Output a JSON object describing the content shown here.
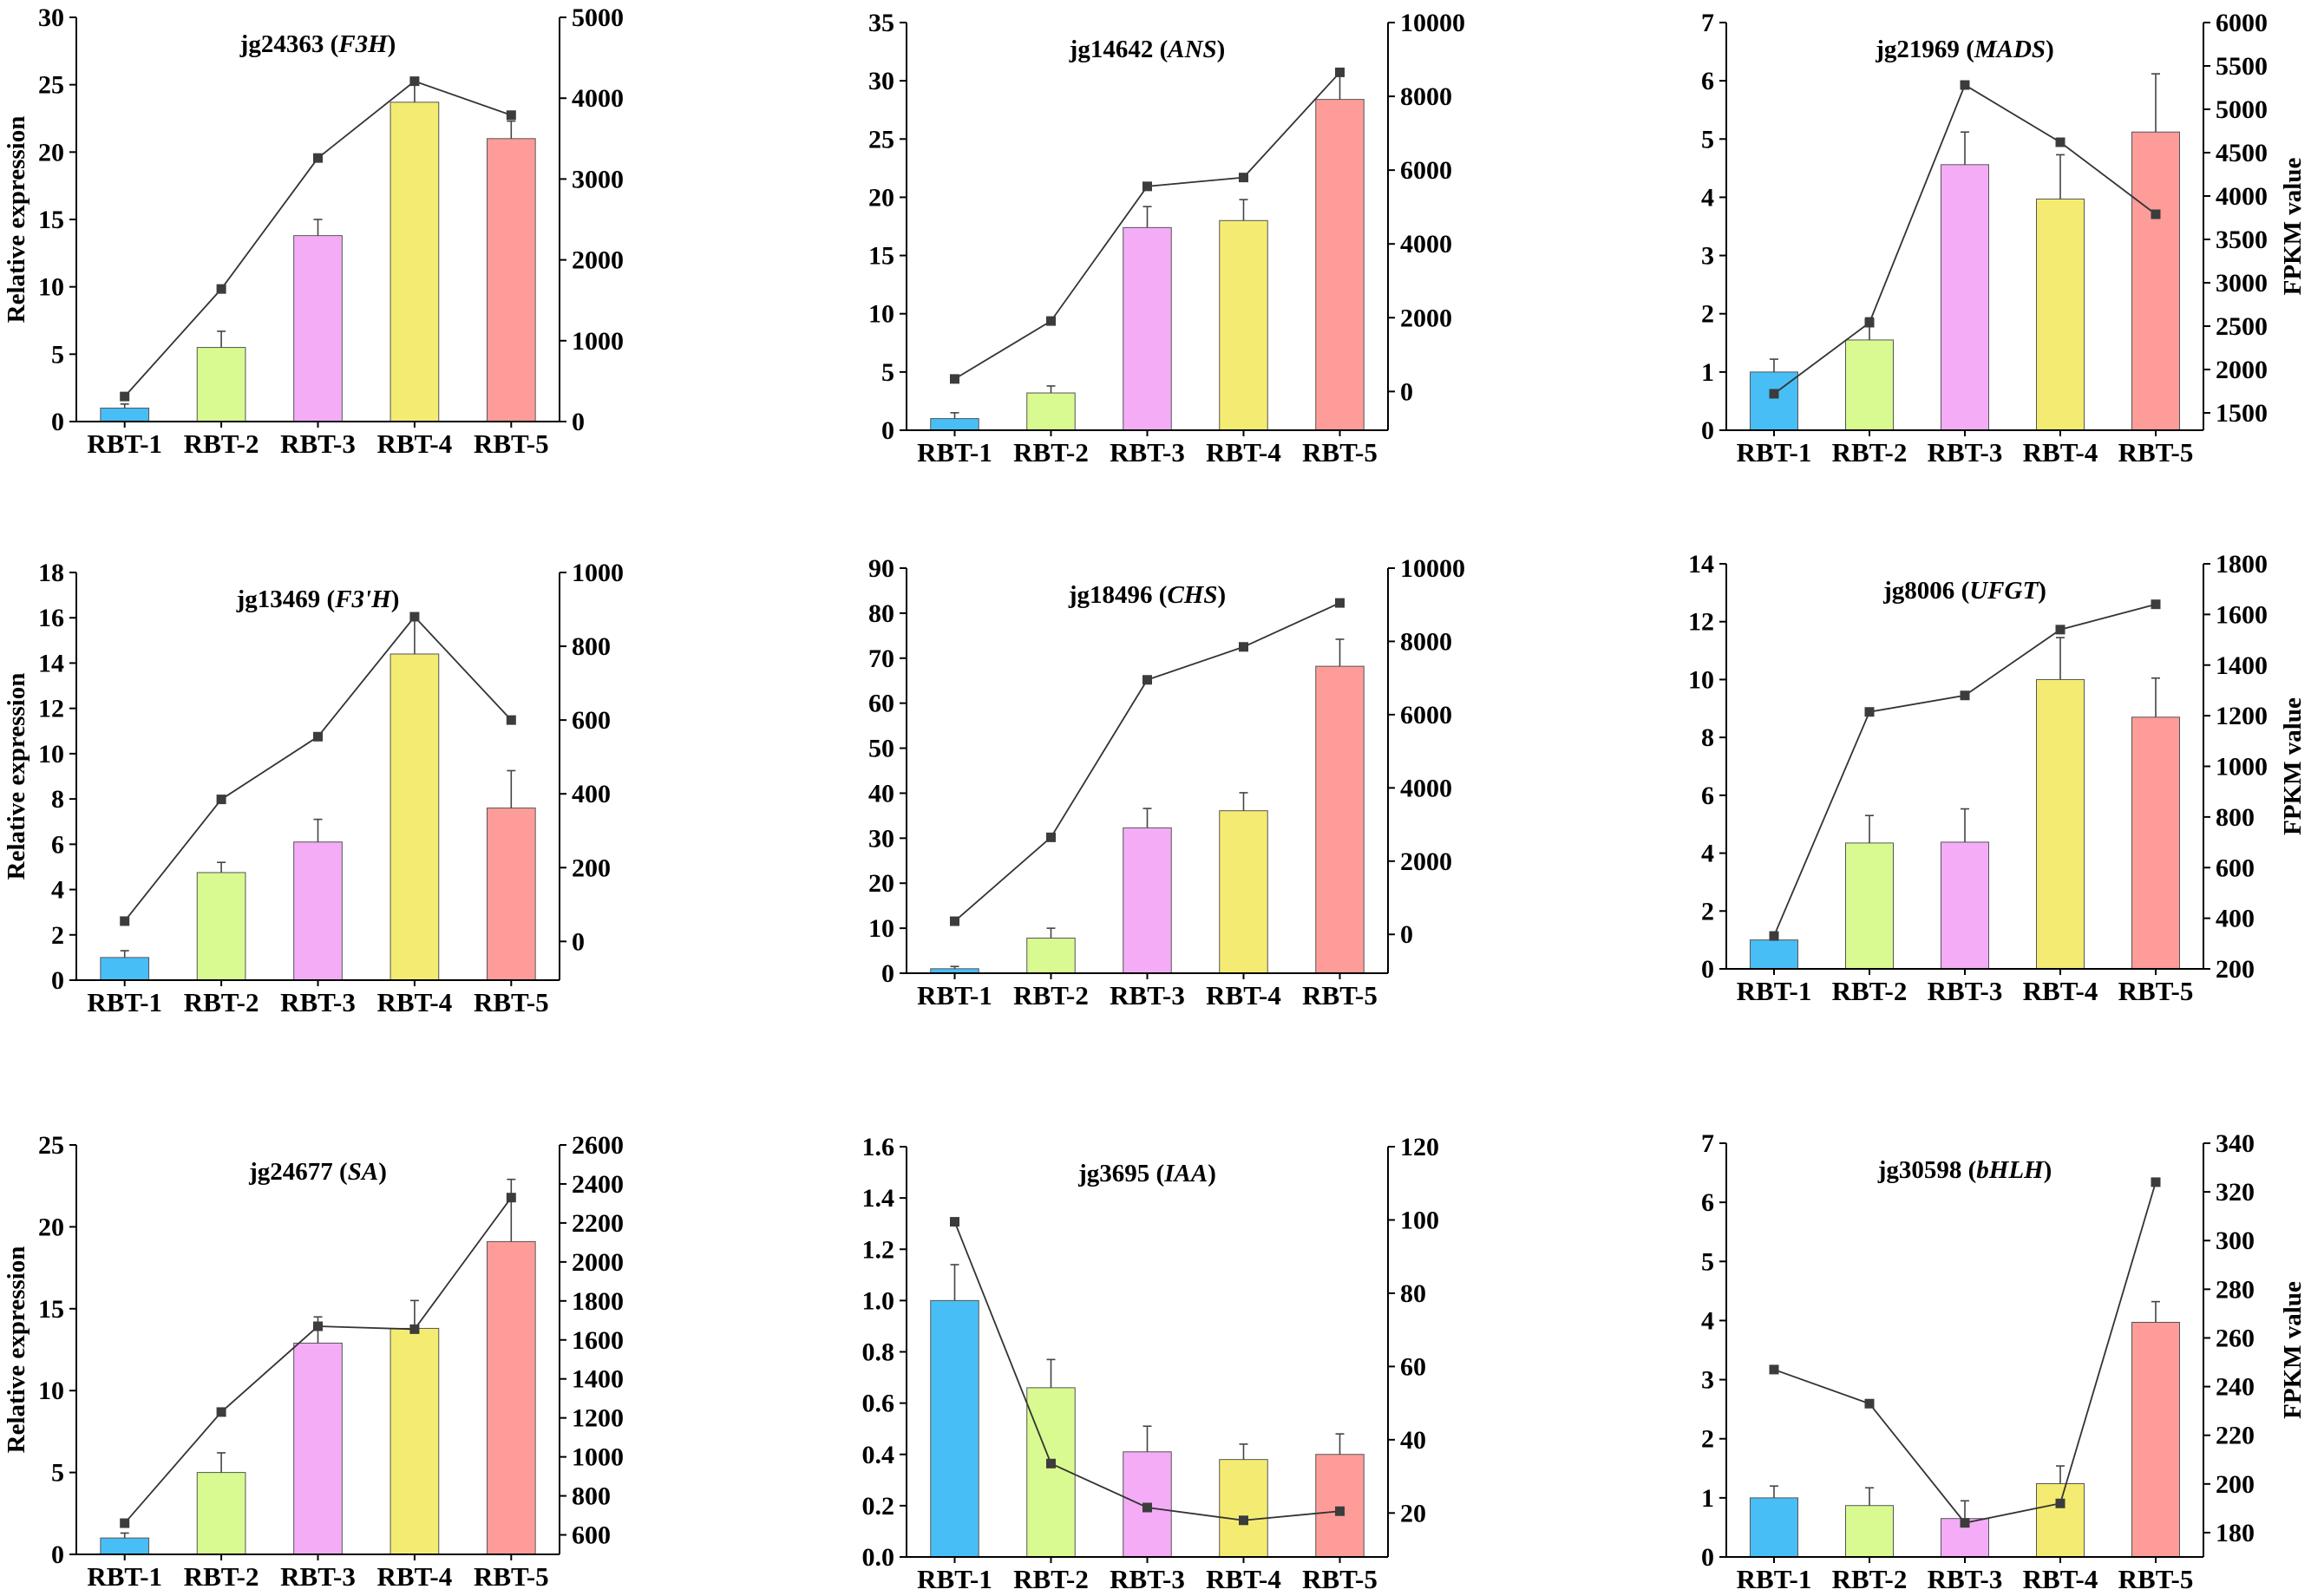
{
  "chart_data": [
    {
      "type": "bar+line",
      "title_id": "jg24363",
      "title_gene": "F3H",
      "ylabel": "Relative expression",
      "y2label": "",
      "categories": [
        "RBT-1",
        "RBT-2",
        "RBT-3",
        "RBT-4",
        "RBT-5"
      ],
      "bar_colors": [
        "#48BEF6",
        "#D8FA91",
        "#F4ACF7",
        "#F4EC72",
        "#FD9C99"
      ],
      "bar_values": [
        1.0,
        5.5,
        13.8,
        23.7,
        21.0
      ],
      "bar_errors": [
        0.3,
        1.2,
        1.2,
        1.5,
        1.3
      ],
      "line_values": [
        310,
        1640,
        3260,
        4210,
        3790
      ],
      "ylim": [
        0,
        30
      ],
      "yticks": [
        "0",
        "5",
        "10",
        "15",
        "20",
        "25",
        "30"
      ],
      "y2lim": [
        0,
        5000
      ],
      "y2ticks": [
        "0",
        "1000",
        "2000",
        "3000",
        "4000",
        "5000"
      ]
    },
    {
      "type": "bar+line",
      "title_id": "jg14642",
      "title_gene": "ANS",
      "ylabel": "",
      "y2label": "",
      "categories": [
        "RBT-1",
        "RBT-2",
        "RBT-3",
        "RBT-4",
        "RBT-5"
      ],
      "bar_colors": [
        "#48BEF6",
        "#D8FA91",
        "#F4ACF7",
        "#F4EC72",
        "#FD9C99"
      ],
      "bar_values": [
        1.0,
        3.2,
        17.4,
        18.0,
        28.4
      ],
      "bar_errors": [
        0.5,
        0.6,
        1.8,
        1.8,
        2.2
      ],
      "line_values": [
        340,
        1910,
        5560,
        5800,
        8650
      ],
      "ylim": [
        0,
        35
      ],
      "yticks": [
        "0",
        "5",
        "10",
        "15",
        "20",
        "25",
        "30",
        "35"
      ],
      "y2lim": [
        -1050,
        10000
      ],
      "y2ticks": [
        "0",
        "2000",
        "4000",
        "6000",
        "8000",
        "10000"
      ]
    },
    {
      "type": "bar+line",
      "title_id": "jg21969",
      "title_gene": "MADS",
      "ylabel": "",
      "y2label": "FPKM value",
      "categories": [
        "RBT-1",
        "RBT-2",
        "RBT-3",
        "RBT-4",
        "RBT-5"
      ],
      "bar_colors": [
        "#48BEF6",
        "#D8FA91",
        "#F4ACF7",
        "#F4EC72",
        "#FD9C99"
      ],
      "bar_values": [
        1.0,
        1.55,
        4.56,
        3.97,
        5.12
      ],
      "bar_errors": [
        0.22,
        0.38,
        0.56,
        0.76,
        1.0
      ],
      "line_values": [
        1720,
        2540,
        5280,
        4620,
        3790
      ],
      "ylim": [
        0,
        7
      ],
      "yticks": [
        "0",
        "1",
        "2",
        "3",
        "4",
        "5",
        "6",
        "7"
      ],
      "y2lim": [
        1300,
        6000
      ],
      "y2ticks": [
        "1500",
        "2000",
        "2500",
        "3000",
        "3500",
        "4000",
        "4500",
        "5000",
        "5500",
        "6000"
      ]
    },
    {
      "type": "bar+line",
      "title_id": "jg13469",
      "title_gene": "F3'H",
      "ylabel": "Relative expression",
      "y2label": "",
      "categories": [
        "RBT-1",
        "RBT-2",
        "RBT-3",
        "RBT-4",
        "RBT-5"
      ],
      "bar_colors": [
        "#48BEF6",
        "#D8FA91",
        "#F4ACF7",
        "#F4EC72",
        "#FD9C99"
      ],
      "bar_values": [
        1.0,
        4.75,
        6.1,
        14.4,
        7.6
      ],
      "bar_errors": [
        0.3,
        0.45,
        1.0,
        1.6,
        1.65
      ],
      "line_values": [
        55,
        385,
        555,
        880,
        600
      ],
      "ylim": [
        0,
        18
      ],
      "yticks": [
        "0",
        "2",
        "4",
        "6",
        "8",
        "10",
        "12",
        "14",
        "16",
        "18"
      ],
      "y2lim": [
        -105,
        1000
      ],
      "y2ticks": [
        "0",
        "200",
        "400",
        "600",
        "800",
        "1000"
      ]
    },
    {
      "type": "bar+line",
      "title_id": "jg18496",
      "title_gene": "CHS",
      "ylabel": "",
      "y2label": "",
      "categories": [
        "RBT-1",
        "RBT-2",
        "RBT-3",
        "RBT-4",
        "RBT-5"
      ],
      "bar_colors": [
        "#48BEF6",
        "#D8FA91",
        "#F4ACF7",
        "#F4EC72",
        "#FD9C99"
      ],
      "bar_values": [
        1.0,
        7.8,
        32.3,
        36.1,
        68.2
      ],
      "bar_errors": [
        0.5,
        2.2,
        4.3,
        4.0,
        6.0
      ],
      "line_values": [
        360,
        2650,
        6950,
        7850,
        9050
      ],
      "ylim": [
        0,
        90
      ],
      "yticks": [
        "0",
        "10",
        "20",
        "30",
        "40",
        "50",
        "60",
        "70",
        "80",
        "90"
      ],
      "y2lim": [
        -1060,
        10000
      ],
      "y2ticks": [
        "0",
        "2000",
        "4000",
        "6000",
        "8000",
        "10000"
      ]
    },
    {
      "type": "bar+line",
      "title_id": "jg8006",
      "title_gene": "UFGT",
      "ylabel": "",
      "y2label": "FPKM value",
      "categories": [
        "RBT-1",
        "RBT-2",
        "RBT-3",
        "RBT-4",
        "RBT-5"
      ],
      "bar_colors": [
        "#48BEF6",
        "#D8FA91",
        "#F4ACF7",
        "#F4EC72",
        "#FD9C99"
      ],
      "bar_values": [
        1.0,
        4.35,
        4.38,
        10.0,
        8.7
      ],
      "bar_errors": [
        0.1,
        0.95,
        1.15,
        1.45,
        1.35
      ],
      "line_values": [
        330,
        1215,
        1280,
        1540,
        1640
      ],
      "ylim": [
        0,
        14
      ],
      "yticks": [
        "0",
        "2",
        "4",
        "6",
        "8",
        "10",
        "12",
        "14"
      ],
      "y2lim": [
        200,
        1800
      ],
      "y2ticks": [
        "200",
        "400",
        "600",
        "800",
        "1000",
        "1200",
        "1400",
        "1600",
        "1800"
      ]
    },
    {
      "type": "bar+line",
      "title_id": "jg24677",
      "title_gene": "SA",
      "ylabel": "Relative expression",
      "y2label": "",
      "categories": [
        "RBT-1",
        "RBT-2",
        "RBT-3",
        "RBT-4",
        "RBT-5"
      ],
      "bar_colors": [
        "#48BEF6",
        "#D8FA91",
        "#F4ACF7",
        "#F4EC72",
        "#FD9C99"
      ],
      "bar_values": [
        1.0,
        5.0,
        12.9,
        13.8,
        19.1
      ],
      "bar_errors": [
        0.3,
        1.2,
        1.6,
        1.7,
        3.8
      ],
      "line_values": [
        660,
        1230,
        1670,
        1655,
        2330
      ],
      "ylim": [
        0,
        25
      ],
      "yticks": [
        "0",
        "5",
        "10",
        "15",
        "20",
        "25"
      ],
      "y2lim": [
        500,
        2600
      ],
      "y2ticks": [
        "600",
        "800",
        "1000",
        "1200",
        "1400",
        "1600",
        "1800",
        "2000",
        "2200",
        "2400",
        "2600"
      ]
    },
    {
      "type": "bar+line",
      "title_id": "jg3695",
      "title_gene": "IAA",
      "ylabel": "",
      "y2label": "",
      "categories": [
        "RBT-1",
        "RBT-2",
        "RBT-3",
        "RBT-4",
        "RBT-5"
      ],
      "bar_colors": [
        "#48BEF6",
        "#D8FA91",
        "#F4ACF7",
        "#F4EC72",
        "#FD9C99"
      ],
      "bar_values": [
        1.0,
        0.66,
        0.41,
        0.38,
        0.4
      ],
      "bar_errors": [
        0.14,
        0.11,
        0.1,
        0.06,
        0.08
      ],
      "line_values": [
        99.5,
        33.5,
        21.5,
        18.0,
        20.5
      ],
      "ylim": [
        0,
        1.6
      ],
      "yticks": [
        "0.0",
        "0.2",
        "0.4",
        "0.6",
        "0.8",
        "1.0",
        "1.2",
        "1.4",
        "1.6"
      ],
      "y2lim": [
        8,
        120
      ],
      "y2ticks": [
        "20",
        "40",
        "60",
        "80",
        "100",
        "120"
      ]
    },
    {
      "type": "bar+line",
      "title_id": "jg30598",
      "title_gene": "bHLH",
      "ylabel": "",
      "y2label": "FPKM value",
      "categories": [
        "RBT-1",
        "RBT-2",
        "RBT-3",
        "RBT-4",
        "RBT-5"
      ],
      "bar_colors": [
        "#48BEF6",
        "#D8FA91",
        "#F4ACF7",
        "#F4EC72",
        "#FD9C99"
      ],
      "bar_values": [
        1.0,
        0.87,
        0.65,
        1.24,
        3.97
      ],
      "bar_errors": [
        0.2,
        0.3,
        0.3,
        0.3,
        0.35
      ],
      "line_values": [
        247,
        233,
        184,
        192,
        324
      ],
      "ylim": [
        0,
        7
      ],
      "yticks": [
        "0",
        "1",
        "2",
        "3",
        "4",
        "5",
        "6",
        "7"
      ],
      "y2lim": [
        170,
        340
      ],
      "y2ticks": [
        "180",
        "200",
        "220",
        "240",
        "260",
        "280",
        "300",
        "320",
        "340"
      ]
    }
  ]
}
